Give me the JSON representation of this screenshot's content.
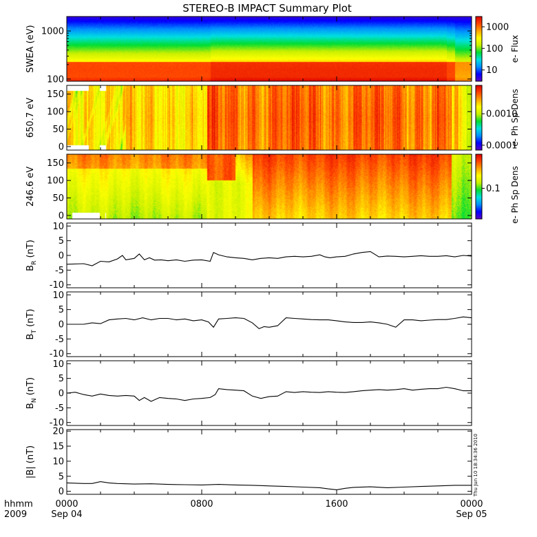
{
  "title": "STEREO-B IMPACT Summary Plot",
  "footer": {
    "hhmm_label": "hhmm",
    "year_label": "2009",
    "stamp": "Thu Jun 10 18:34:36 2010"
  },
  "time_axis": {
    "ticks": [
      {
        "hour": 0,
        "label": "0000",
        "sub": "Sep 04"
      },
      {
        "hour": 8,
        "label": "0800",
        "sub": ""
      },
      {
        "hour": 16,
        "label": "1600",
        "sub": ""
      },
      {
        "hour": 24,
        "label": "0000",
        "sub": "Sep 05"
      }
    ]
  },
  "colors": {
    "line": "#000000",
    "spectrogram_stops": [
      "#5a00c8",
      "#0000ff",
      "#0090ff",
      "#00e0e0",
      "#00dd33",
      "#c8f000",
      "#ffff00",
      "#ffa500",
      "#ff4400",
      "#dd0000"
    ]
  },
  "chart_data": [
    {
      "type": "heatmap",
      "ylabel": "SWEA (eV)",
      "yscale": "log",
      "ylim": [
        90,
        2000
      ],
      "yticks": [
        {
          "value": 100,
          "label": "100"
        },
        {
          "value": 1000,
          "label": "1000"
        }
      ],
      "colorbar": {
        "label": "e- Flux",
        "scale": "log",
        "range": [
          3,
          3000
        ],
        "ticks": [
          {
            "value": 10,
            "label": "10"
          },
          {
            "value": 100,
            "label": "100"
          },
          {
            "value": 1000,
            "label": "1000"
          }
        ]
      },
      "description_of_values": "energy bands vs time; flux highest at low energy"
    },
    {
      "type": "heatmap",
      "ylabel": "650.7 eV",
      "ylim": [
        -10,
        175
      ],
      "yticks": [
        {
          "value": 0,
          "label": "0"
        },
        {
          "value": 50,
          "label": "50"
        },
        {
          "value": 100,
          "label": "100"
        },
        {
          "value": 150,
          "label": "150"
        }
      ],
      "colorbar": {
        "label": "e- Ph Sp Dens",
        "scale": "log",
        "range": [
          7e-05,
          0.008
        ],
        "ticks": [
          {
            "value": 0.0001,
            "label": "0.0001"
          },
          {
            "value": 0.001,
            "label": "0.0010"
          }
        ]
      }
    },
    {
      "type": "heatmap",
      "ylabel": "246.6 eV",
      "ylim": [
        -10,
        175
      ],
      "yticks": [
        {
          "value": 0,
          "label": "0"
        },
        {
          "value": 50,
          "label": "50"
        },
        {
          "value": 100,
          "label": "100"
        },
        {
          "value": 150,
          "label": "150"
        }
      ],
      "colorbar": {
        "label": "e- Ph Sp Dens",
        "scale": "log",
        "range": [
          0.02,
          0.6
        ],
        "ticks": [
          {
            "value": 0.1,
            "label": "0.1"
          }
        ]
      }
    },
    {
      "type": "line",
      "ylabel": "B",
      "ylabel_sub": "R",
      "ylabel_unit": "(nT)",
      "ylim": [
        -11,
        11
      ],
      "yticks": [
        {
          "value": -10,
          "label": "-10"
        },
        {
          "value": -5,
          "label": "-5"
        },
        {
          "value": 0,
          "label": "0"
        },
        {
          "value": 5,
          "label": "5"
        },
        {
          "value": 10,
          "label": "10"
        }
      ],
      "x": [
        0,
        1,
        1.5,
        2,
        2.5,
        3,
        3.3,
        3.5,
        4,
        4.3,
        4.6,
        4.9,
        5.2,
        5.6,
        6,
        6.5,
        7,
        7.5,
        8,
        8.5,
        8.7,
        9,
        9.5,
        10,
        10.5,
        11,
        11.5,
        12,
        12.5,
        13,
        13.5,
        14,
        14.5,
        15,
        15.3,
        15.6,
        16,
        16.5,
        17,
        17.5,
        18,
        18.5,
        19,
        19.5,
        20,
        20.5,
        21,
        21.5,
        22,
        22.5,
        23,
        23.5,
        24
      ],
      "values": [
        -3,
        -2.8,
        -3.5,
        -2,
        -2.2,
        -1.2,
        0,
        -1.5,
        -1,
        0.5,
        -1.5,
        -0.8,
        -1.6,
        -1.5,
        -1.8,
        -1.5,
        -2,
        -1.6,
        -1.5,
        -2,
        1,
        0.2,
        -0.5,
        -0.8,
        -1,
        -1.5,
        -1,
        -0.8,
        -1,
        -0.5,
        -0.3,
        -0.5,
        -0.3,
        0.2,
        -0.5,
        -0.8,
        -0.5,
        -0.3,
        0.5,
        1,
        1.3,
        -0.5,
        -0.2,
        -0.3,
        -0.5,
        -0.3,
        -0.1,
        -0.3,
        -0.3,
        -0.1,
        -0.5,
        0,
        -0.2
      ]
    },
    {
      "type": "line",
      "ylabel": "B",
      "ylabel_sub": "T",
      "ylabel_unit": "(nT)",
      "ylim": [
        -11,
        11
      ],
      "yticks": [
        {
          "value": -10,
          "label": "-10"
        },
        {
          "value": -5,
          "label": "-5"
        },
        {
          "value": 0,
          "label": "0"
        },
        {
          "value": 5,
          "label": "5"
        },
        {
          "value": 10,
          "label": "10"
        }
      ],
      "x": [
        0,
        1,
        1.5,
        2,
        2.5,
        3,
        3.5,
        4,
        4.5,
        5,
        5.5,
        6,
        6.5,
        7,
        7.5,
        8,
        8.4,
        8.7,
        9,
        9.5,
        10,
        10.5,
        11,
        11.4,
        11.7,
        12,
        12.5,
        13,
        13.5,
        14,
        14.5,
        15,
        15.5,
        16,
        16.5,
        17,
        17.5,
        18,
        18.5,
        19,
        19.5,
        20,
        20.5,
        21,
        21.5,
        22,
        22.5,
        23,
        23.5,
        24
      ],
      "values": [
        0,
        0,
        0.5,
        0.2,
        1.5,
        1.8,
        2,
        1.5,
        2.2,
        1.5,
        2,
        2,
        1.5,
        1.8,
        1.2,
        1.5,
        0.8,
        -1,
        1.8,
        2,
        2.2,
        2,
        0.5,
        -1.5,
        -0.8,
        -1,
        -0.5,
        2.2,
        2,
        1.8,
        1.6,
        1.5,
        1.5,
        1.2,
        0.8,
        0.6,
        0.6,
        0.8,
        0.5,
        0,
        -1,
        1.5,
        1.5,
        1.2,
        1.4,
        1.6,
        1.6,
        2,
        2.5,
        2.2
      ]
    },
    {
      "type": "line",
      "ylabel": "B",
      "ylabel_sub": "N",
      "ylabel_unit": "(nT)",
      "ylim": [
        -11,
        11
      ],
      "yticks": [
        {
          "value": -10,
          "label": "-10"
        },
        {
          "value": -5,
          "label": "-5"
        },
        {
          "value": 0,
          "label": "0"
        },
        {
          "value": 5,
          "label": "5"
        },
        {
          "value": 10,
          "label": "10"
        }
      ],
      "x": [
        0,
        0.5,
        1,
        1.5,
        2,
        2.5,
        3,
        3.5,
        4,
        4.3,
        4.6,
        5,
        5.5,
        6,
        6.5,
        7,
        7.5,
        8,
        8.5,
        8.8,
        9,
        9.5,
        10,
        10.5,
        11,
        11.5,
        12,
        12.5,
        13,
        13.5,
        14,
        14.5,
        15,
        15.5,
        16,
        16.5,
        17,
        17.5,
        18,
        18.5,
        19,
        19.5,
        20,
        20.5,
        21,
        21.5,
        22,
        22.5,
        23,
        23.5,
        24
      ],
      "values": [
        0,
        0.3,
        -0.5,
        -1,
        -0.3,
        -0.8,
        -1,
        -0.8,
        -1,
        -2.5,
        -1.5,
        -2.8,
        -1.5,
        -1.8,
        -2,
        -2.5,
        -2,
        -1.8,
        -1.5,
        -0.5,
        1.5,
        1.2,
        1,
        0.8,
        -1,
        -1.8,
        -1.2,
        -1,
        0.5,
        0.2,
        0.5,
        0.3,
        0.2,
        0.5,
        0.3,
        0.2,
        0.5,
        0.8,
        1,
        1.2,
        1,
        1.2,
        1.5,
        1,
        1.3,
        1.5,
        1.5,
        2,
        1.5,
        0.8,
        0.8
      ]
    },
    {
      "type": "line",
      "ylabel": "|B| (nT)",
      "ylim": [
        -1,
        20.5
      ],
      "yticks": [
        {
          "value": 0,
          "label": "0"
        },
        {
          "value": 5,
          "label": "5"
        },
        {
          "value": 10,
          "label": "10"
        },
        {
          "value": 15,
          "label": "15"
        },
        {
          "value": 20,
          "label": "20"
        }
      ],
      "x": [
        0,
        1,
        1.5,
        2,
        2.5,
        3,
        4,
        5,
        6,
        7,
        8,
        9,
        10,
        11,
        12,
        13,
        14,
        15,
        15.5,
        16,
        16.5,
        17,
        18,
        19,
        20,
        21,
        22,
        23,
        24
      ],
      "values": [
        2.8,
        2.6,
        2.6,
        3.2,
        2.8,
        2.6,
        2.4,
        2.5,
        2.3,
        2.2,
        2.1,
        2.3,
        2.1,
        2,
        1.8,
        1.6,
        1.4,
        1.2,
        0.8,
        0.5,
        1,
        1.3,
        1.5,
        1.2,
        1.4,
        1.6,
        1.8,
        2,
        2
      ]
    }
  ]
}
